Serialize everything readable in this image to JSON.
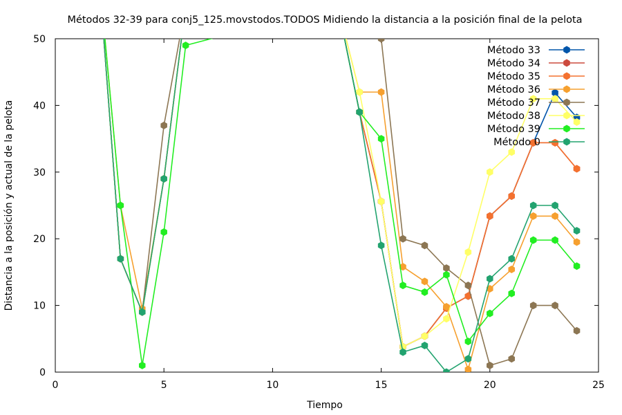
{
  "chart_data": {
    "type": "line",
    "title": "Métodos 32-39 para conj5_125.movstodos.TODOS Midiendo la distancia a la posición final de la pelota",
    "xlabel": "Tiempo",
    "ylabel": "Distancia a la posición y actual de la pelota",
    "xlim": [
      0,
      25
    ],
    "ylim": [
      0,
      50
    ],
    "xticks": [
      0,
      5,
      10,
      15,
      20,
      25
    ],
    "yticks": [
      0,
      10,
      20,
      30,
      40,
      50
    ],
    "grid": false,
    "legend_position": "top-right",
    "series": [
      {
        "name": "Método 33",
        "color": "#0055aa",
        "x": [
          2,
          3,
          4,
          5,
          6,
          13,
          14,
          15,
          16,
          17,
          18,
          19,
          20,
          21,
          22,
          23,
          24
        ],
        "y": [
          60,
          17,
          9,
          29,
          55,
          55,
          39,
          25.6,
          3.8,
          5.4,
          9.6,
          11.4,
          23.4,
          26.4,
          34.4,
          41.9,
          38.2
        ]
      },
      {
        "name": "Método 34",
        "color": "#cc4a3d",
        "x": [
          2,
          3,
          4,
          5,
          6,
          13,
          14,
          15,
          16,
          17,
          18,
          19,
          20,
          21,
          22,
          23,
          24
        ],
        "y": [
          60,
          17,
          9,
          29,
          55,
          55,
          39,
          25.6,
          3.8,
          5.4,
          9.6,
          11.4,
          23.4,
          26.4,
          34.4,
          34.4,
          30.5
        ]
      },
      {
        "name": "Método 35",
        "color": "#f4712f",
        "x": [
          2,
          3,
          4,
          5,
          6,
          13,
          14,
          15,
          16,
          17,
          18,
          19,
          20,
          21,
          22,
          23,
          24
        ],
        "y": [
          60,
          17,
          9,
          29,
          55,
          55,
          39,
          25.6,
          3.8,
          5.4,
          9.6,
          11.4,
          23.4,
          26.4,
          34.4,
          34.4,
          30.5
        ]
      },
      {
        "name": "Método 36",
        "color": "#f6a02f",
        "x": [
          2,
          3,
          4,
          5,
          6,
          13,
          14,
          15,
          16,
          17,
          18,
          19,
          20,
          21,
          22,
          23,
          24
        ],
        "y": [
          60,
          25,
          9.5,
          29,
          55,
          55,
          42,
          42,
          15.8,
          13.6,
          9.8,
          0.4,
          12.5,
          15.4,
          23.4,
          23.4,
          19.5
        ]
      },
      {
        "name": "Método 37",
        "color": "#8c7653",
        "x": [
          2,
          3,
          4,
          5,
          6,
          14,
          15,
          16,
          17,
          18,
          19,
          20,
          21,
          22,
          23,
          24
        ],
        "y": [
          60,
          17,
          9,
          37,
          55,
          55,
          50,
          20,
          19,
          15.6,
          13,
          1,
          2,
          10,
          10,
          6.2
        ]
      },
      {
        "name": "Método 38",
        "color": "#ffff66",
        "x": [
          2,
          3,
          4,
          5,
          6,
          13,
          14,
          15,
          16,
          17,
          18,
          19,
          20,
          21,
          22,
          23,
          24
        ],
        "y": [
          60,
          17,
          9,
          29,
          55,
          55,
          42,
          25.6,
          3.8,
          5.4,
          8,
          18,
          30,
          33,
          41,
          41,
          37.5
        ]
      },
      {
        "name": "Método 39",
        "color": "#22ee22",
        "x": [
          2,
          3,
          4,
          5,
          6,
          13,
          14,
          15,
          16,
          17,
          18,
          19,
          20,
          21,
          22,
          23,
          24
        ],
        "y": [
          60,
          25,
          1,
          21,
          49,
          55,
          39,
          35,
          13,
          12,
          14.6,
          4.6,
          8.8,
          11.8,
          19.8,
          19.8,
          15.9
        ]
      },
      {
        "name": "Método 0",
        "color": "#22a36f",
        "x": [
          2,
          3,
          4,
          5,
          6,
          13,
          14,
          15,
          16,
          17,
          18,
          19,
          20,
          21,
          22,
          23,
          24
        ],
        "y": [
          60,
          17,
          9,
          29,
          55,
          55,
          39,
          19,
          3,
          4,
          0,
          2,
          14,
          17,
          25,
          25,
          21.2
        ]
      }
    ]
  }
}
